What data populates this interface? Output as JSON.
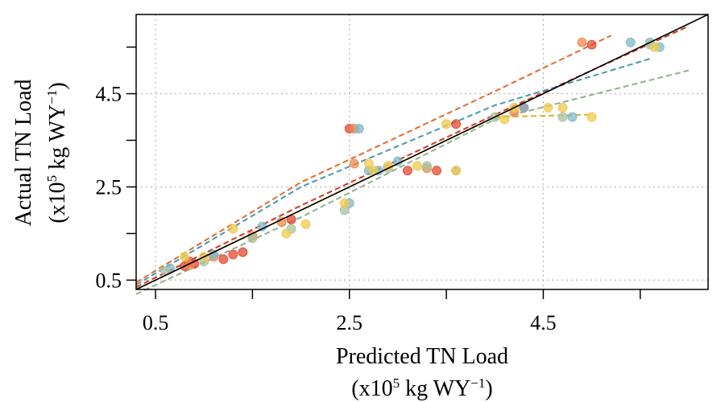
{
  "chart_data": {
    "type": "scatter",
    "xlabel_line1": "Predicted TN Load",
    "xlabel_line2_pre": "(x10",
    "xlabel_line2_sup": "5",
    "xlabel_line2_mid": " kg WY",
    "xlabel_line2_sup2": "−1",
    "xlabel_line2_post": ")",
    "ylabel_line1": "Actual TN Load",
    "ylabel_line2_pre": "(x10",
    "ylabel_line2_sup": "5",
    "ylabel_line2_mid": " kg WY",
    "ylabel_line2_sup2": "−1",
    "ylabel_line2_post": ")",
    "xlim": [
      0.3,
      6.2
    ],
    "ylim": [
      0.3,
      6.2
    ],
    "x_ticks": [
      0.5,
      1.5,
      2.5,
      3.5,
      4.5,
      5.5
    ],
    "x_tick_labels": [
      "0.5",
      "",
      "2.5",
      "",
      "4.5",
      ""
    ],
    "y_ticks": [
      0.5,
      1.5,
      2.5,
      3.5,
      4.5,
      5.5
    ],
    "y_tick_labels": [
      "0.5",
      "",
      "2.5",
      "",
      "4.5",
      ""
    ],
    "x_grid": [
      0.5,
      2.5,
      4.5
    ],
    "y_grid": [
      0.5,
      2.5,
      4.5
    ],
    "grid": true,
    "one_to_one_line": [
      [
        0.3,
        0.3
      ],
      [
        6.2,
        6.2
      ]
    ],
    "series": [
      {
        "color": "#E34A33",
        "points": [
          [
            0.8,
            0.8
          ],
          [
            0.9,
            0.85
          ],
          [
            1.2,
            0.95
          ],
          [
            1.4,
            1.1
          ],
          [
            1.9,
            1.8
          ],
          [
            2.5,
            3.75
          ],
          [
            3.1,
            2.85
          ],
          [
            3.4,
            2.85
          ],
          [
            3.6,
            3.85
          ],
          [
            4.3,
            4.2
          ],
          [
            5.0,
            5.55
          ],
          [
            0.85,
            0.9
          ],
          [
            1.3,
            1.05
          ]
        ],
        "line": [
          [
            0.3,
            0.35
          ],
          [
            2.0,
            2.1
          ],
          [
            4.0,
            4.05
          ],
          [
            6.0,
            5.95
          ]
        ],
        "line_color": "#CC3A1E"
      },
      {
        "color": "#F08A4B",
        "points": [
          [
            0.85,
            0.82
          ],
          [
            1.1,
            1.0
          ],
          [
            1.8,
            1.75
          ],
          [
            2.55,
            3.75
          ],
          [
            2.55,
            3.0
          ],
          [
            3.3,
            2.9
          ],
          [
            4.2,
            4.1
          ],
          [
            4.9,
            5.6
          ],
          [
            1.5,
            1.45
          ]
        ],
        "line": [
          [
            0.3,
            0.45
          ],
          [
            2.0,
            2.6
          ],
          [
            4.0,
            4.55
          ],
          [
            5.2,
            5.75
          ]
        ],
        "line_color": "#E06B2E"
      },
      {
        "color": "#7FB8C9",
        "points": [
          [
            0.65,
            0.75
          ],
          [
            1.1,
            1.05
          ],
          [
            2.5,
            2.15
          ],
          [
            2.6,
            3.75
          ],
          [
            2.7,
            2.85
          ],
          [
            2.8,
            2.85
          ],
          [
            3.0,
            3.05
          ],
          [
            3.6,
            2.85
          ],
          [
            4.3,
            4.2
          ],
          [
            4.8,
            4.0
          ],
          [
            5.4,
            5.6
          ],
          [
            5.6,
            5.6
          ],
          [
            5.7,
            5.5
          ],
          [
            1.6,
            1.65
          ]
        ],
        "line": [
          [
            0.3,
            0.4
          ],
          [
            2.0,
            2.5
          ],
          [
            4.0,
            4.25
          ],
          [
            5.6,
            5.25
          ]
        ],
        "line_color": "#4A97AF"
      },
      {
        "color": "#A8C3A0",
        "points": [
          [
            0.6,
            0.7
          ],
          [
            1.0,
            0.9
          ],
          [
            1.5,
            1.4
          ],
          [
            2.45,
            2.0
          ],
          [
            2.9,
            2.9
          ],
          [
            3.3,
            2.95
          ],
          [
            4.0,
            4.0
          ],
          [
            4.7,
            4.0
          ],
          [
            5.6,
            5.55
          ],
          [
            1.9,
            1.6
          ]
        ],
        "line": [
          [
            0.3,
            0.2
          ],
          [
            2.0,
            1.85
          ],
          [
            4.0,
            3.95
          ],
          [
            6.0,
            5.0
          ]
        ],
        "line_color": "#8FB08A"
      },
      {
        "color": "#EFC94C",
        "points": [
          [
            0.8,
            1.0
          ],
          [
            1.3,
            1.6
          ],
          [
            1.85,
            1.5
          ],
          [
            2.05,
            1.7
          ],
          [
            2.45,
            2.15
          ],
          [
            2.7,
            3.0
          ],
          [
            2.75,
            2.85
          ],
          [
            2.9,
            2.95
          ],
          [
            3.2,
            2.95
          ],
          [
            3.5,
            3.85
          ],
          [
            3.6,
            2.85
          ],
          [
            4.1,
            3.95
          ],
          [
            4.2,
            4.2
          ],
          [
            4.55,
            4.2
          ],
          [
            4.7,
            4.2
          ],
          [
            5.0,
            4.0
          ],
          [
            5.65,
            5.5
          ],
          [
            1.0,
            1.0
          ]
        ],
        "line": [
          [
            0.3,
            0.3
          ],
          [
            2.0,
            2.0
          ],
          [
            4.0,
            4.0
          ],
          [
            5.0,
            4.05
          ]
        ],
        "line_color": "#D9B12E"
      }
    ]
  }
}
